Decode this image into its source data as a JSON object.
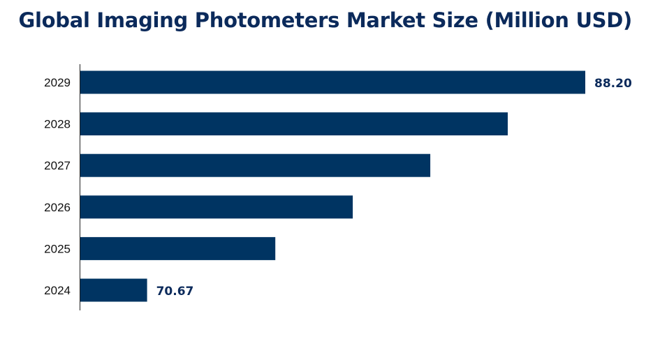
{
  "chart_data": {
    "type": "bar",
    "orientation": "horizontal",
    "title": "Global Imaging Photometers Market Size (Million USD)",
    "categories": [
      "2029",
      "2028",
      "2027",
      "2026",
      "2025",
      "2024"
    ],
    "values": [
      88.2,
      85.1,
      82.0,
      78.9,
      75.8,
      70.67
    ],
    "data_labels": {
      "2029": "88.20",
      "2024": "70.67"
    },
    "xlabel": "",
    "ylabel": "",
    "xlim": [
      68.0,
      88.2
    ],
    "grid": false,
    "legend": "none",
    "bar_color": "#003462"
  }
}
